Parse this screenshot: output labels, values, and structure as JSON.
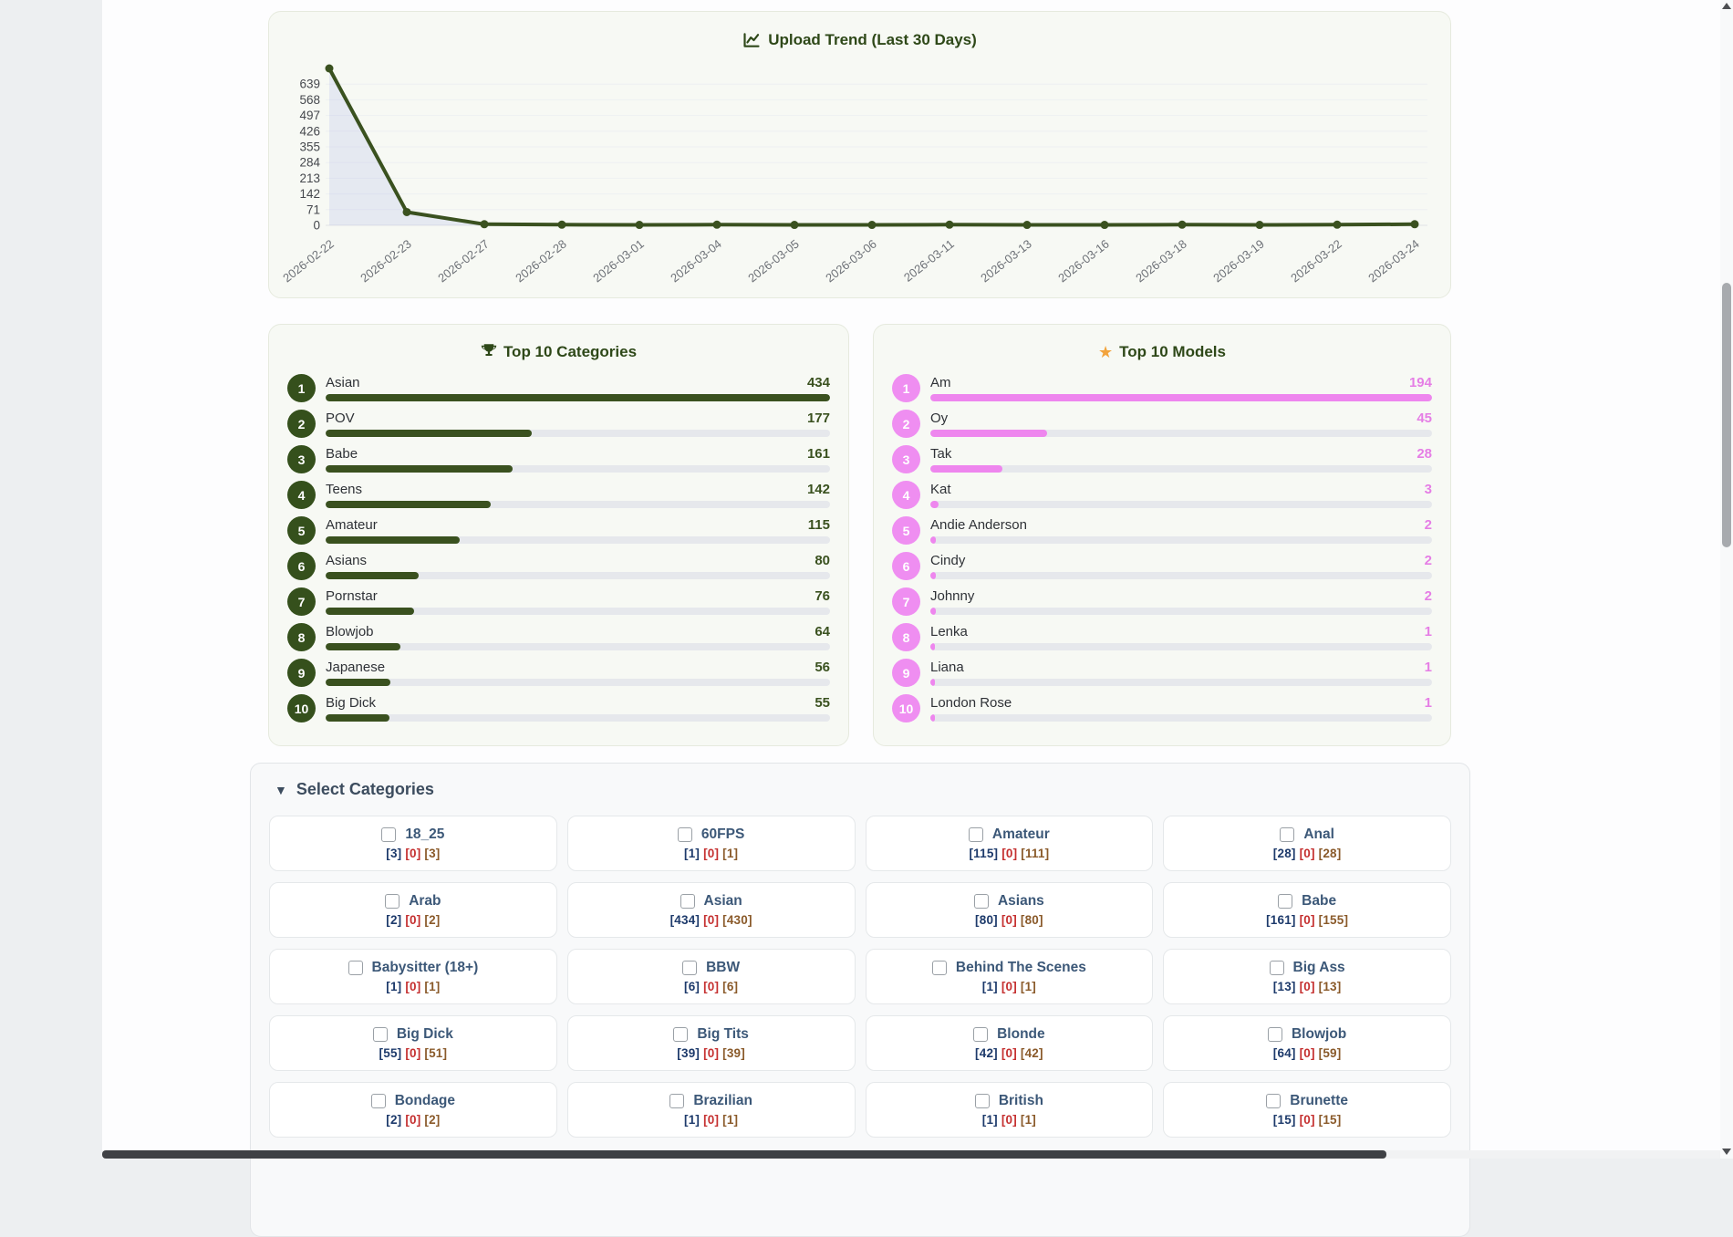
{
  "chart": {
    "title": "Upload Trend (Last 30 Days)",
    "line_color": "#3a511f",
    "fill_color": "rgba(150,160,230,0.18)"
  },
  "chart_data": {
    "type": "line",
    "title": "Upload Trend (Last 30 Days)",
    "x": [
      "2026-02-22",
      "2026-02-23",
      "2026-02-27",
      "2026-02-28",
      "2026-03-01",
      "2026-03-04",
      "2026-03-05",
      "2026-03-06",
      "2026-03-11",
      "2026-03-13",
      "2026-03-16",
      "2026-03-18",
      "2026-03-19",
      "2026-03-22",
      "2026-03-24"
    ],
    "values": [
      710,
      60,
      5,
      3,
      2,
      3,
      2,
      2,
      3,
      2,
      2,
      3,
      2,
      3,
      5
    ],
    "y_ticks": [
      639,
      568,
      497,
      426,
      355,
      284,
      213,
      142,
      71,
      0
    ],
    "ylim": [
      0,
      710
    ],
    "grid": true,
    "xlabel": "",
    "ylabel": "",
    "legend": "none"
  },
  "top_categories": {
    "title": "Top 10 Categories",
    "icon": "trophy",
    "badge_color": "#35501c",
    "bar_color": "#3a511f",
    "value_color": "#3a511f",
    "items": [
      {
        "rank": 1,
        "label": "Asian",
        "value": 434
      },
      {
        "rank": 2,
        "label": "POV",
        "value": 177
      },
      {
        "rank": 3,
        "label": "Babe",
        "value": 161
      },
      {
        "rank": 4,
        "label": "Teens",
        "value": 142
      },
      {
        "rank": 5,
        "label": "Amateur",
        "value": 115
      },
      {
        "rank": 6,
        "label": "Asians",
        "value": 80
      },
      {
        "rank": 7,
        "label": "Pornstar",
        "value": 76
      },
      {
        "rank": 8,
        "label": "Blowjob",
        "value": 64
      },
      {
        "rank": 9,
        "label": "Japanese",
        "value": 56
      },
      {
        "rank": 10,
        "label": "Big Dick",
        "value": 55
      }
    ]
  },
  "top_models": {
    "title": "Top 10 Models",
    "icon": "star",
    "star_color": "#f2a33c",
    "badge_color": "#ef8ef1",
    "bar_color": "#ee86ee",
    "value_color": "#e57ee5",
    "items": [
      {
        "rank": 1,
        "label": "Am",
        "value": 194
      },
      {
        "rank": 2,
        "label": "Oy",
        "value": 45
      },
      {
        "rank": 3,
        "label": "Tak",
        "value": 28
      },
      {
        "rank": 4,
        "label": "Kat",
        "value": 3
      },
      {
        "rank": 5,
        "label": "Andie Anderson",
        "value": 2
      },
      {
        "rank": 6,
        "label": "Cindy",
        "value": 2
      },
      {
        "rank": 7,
        "label": "Johnny",
        "value": 2
      },
      {
        "rank": 8,
        "label": "Lenka",
        "value": 1
      },
      {
        "rank": 9,
        "label": "Liana",
        "value": 1
      },
      {
        "rank": 10,
        "label": "London Rose",
        "value": 1
      }
    ]
  },
  "select_categories": {
    "title": "Select Categories",
    "collapse_icon": "triangle-down",
    "count_colors": [
      "#1d3a6b",
      "#c53030",
      "#8a5a2a"
    ],
    "cards": [
      {
        "label": "18_25",
        "counts": [
          3,
          0,
          3
        ],
        "checked": false
      },
      {
        "label": "60FPS",
        "counts": [
          1,
          0,
          1
        ],
        "checked": false
      },
      {
        "label": "Amateur",
        "counts": [
          115,
          0,
          111
        ],
        "checked": false
      },
      {
        "label": "Anal",
        "counts": [
          28,
          0,
          28
        ],
        "checked": false
      },
      {
        "label": "Arab",
        "counts": [
          2,
          0,
          2
        ],
        "checked": false
      },
      {
        "label": "Asian",
        "counts": [
          434,
          0,
          430
        ],
        "checked": false
      },
      {
        "label": "Asians",
        "counts": [
          80,
          0,
          80
        ],
        "checked": false
      },
      {
        "label": "Babe",
        "counts": [
          161,
          0,
          155
        ],
        "checked": false
      },
      {
        "label": "Babysitter (18+)",
        "counts": [
          1,
          0,
          1
        ],
        "checked": false
      },
      {
        "label": "BBW",
        "counts": [
          6,
          0,
          6
        ],
        "checked": false
      },
      {
        "label": "Behind The Scenes",
        "counts": [
          1,
          0,
          1
        ],
        "checked": false
      },
      {
        "label": "Big Ass",
        "counts": [
          13,
          0,
          13
        ],
        "checked": false
      },
      {
        "label": "Big Dick",
        "counts": [
          55,
          0,
          51
        ],
        "checked": false
      },
      {
        "label": "Big Tits",
        "counts": [
          39,
          0,
          39
        ],
        "checked": false
      },
      {
        "label": "Blonde",
        "counts": [
          42,
          0,
          42
        ],
        "checked": false
      },
      {
        "label": "Blowjob",
        "counts": [
          64,
          0,
          59
        ],
        "checked": false
      },
      {
        "label": "Bondage",
        "counts": [
          2,
          0,
          2
        ],
        "checked": false
      },
      {
        "label": "Brazilian",
        "counts": [
          1,
          0,
          1
        ],
        "checked": false
      },
      {
        "label": "British",
        "counts": [
          1,
          0,
          1
        ],
        "checked": false
      },
      {
        "label": "Brunette",
        "counts": [
          15,
          0,
          15
        ],
        "checked": false
      }
    ]
  }
}
